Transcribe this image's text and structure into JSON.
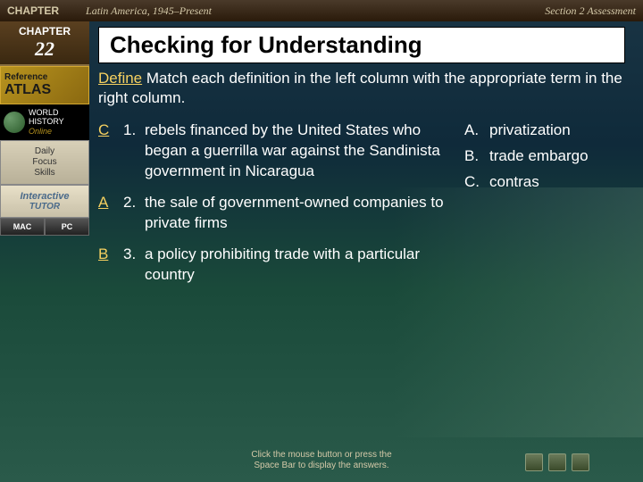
{
  "header": {
    "chapter_label": "CHAPTER",
    "chapter_num": "22",
    "title": "Latin America, 1945–Present",
    "section": "Section 2 Assessment"
  },
  "sidebar": {
    "atlas_ref": "Reference",
    "atlas_big": "ATLAS",
    "world": "WORLD",
    "history": "HISTORY",
    "online": "Online",
    "focus_l1": "Daily",
    "focus_l2": "Focus",
    "focus_l3": "Skills",
    "tutor_l1": "Interactive",
    "tutor_l2": "TUTOR",
    "mac": "MAC",
    "pc": "PC"
  },
  "content": {
    "heading": "Checking for Understanding",
    "define": "Define",
    "instructions": "Match each definition in the left column with the appropriate term in the right column.",
    "questions": [
      {
        "ans": "C",
        "num": "1.",
        "text": "rebels financed by the United States who began a guerrilla war against the Sandinista government in Nicaragua"
      },
      {
        "ans": "A",
        "num": "2.",
        "text": "the sale of government-owned companies to private firms"
      },
      {
        "ans": "B",
        "num": "3.",
        "text": "a policy prohibiting trade with a particular country"
      }
    ],
    "choices": [
      {
        "key": "A.",
        "term": "privatization"
      },
      {
        "key": "B.",
        "term": "trade embargo"
      },
      {
        "key": "C.",
        "term": "contras"
      }
    ]
  },
  "footer": {
    "hint_l1": "Click the mouse button or press the",
    "hint_l2": "Space Bar to display the answers."
  },
  "colors": {
    "accent": "#f5d060",
    "text": "#ffffff",
    "header_bg": "#3a2a1a"
  }
}
